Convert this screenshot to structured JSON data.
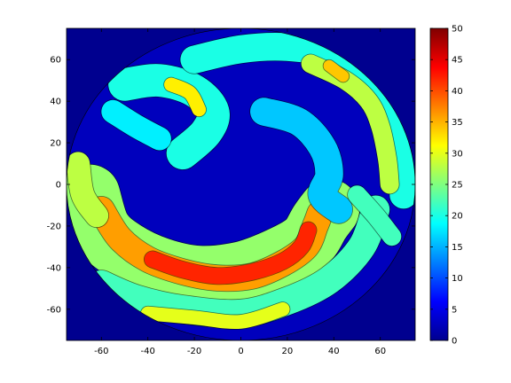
{
  "chart_data": {
    "type": "heatmap",
    "title": "",
    "xlabel": "",
    "ylabel": "",
    "xlim": [
      -75,
      75
    ],
    "ylim": [
      -75,
      75
    ],
    "x_ticks": [
      "-60",
      "-40",
      "-20",
      "0",
      "20",
      "40",
      "60"
    ],
    "x_tick_values": [
      -60,
      -40,
      -20,
      0,
      20,
      40,
      60
    ],
    "y_ticks": [
      "60",
      "40",
      "20",
      "0",
      "-20",
      "-40",
      "-60"
    ],
    "y_tick_values": [
      60,
      40,
      20,
      0,
      -20,
      -40,
      -60
    ],
    "colorbar": {
      "range": [
        0,
        50
      ],
      "ticks": [
        "50",
        "45",
        "40",
        "35",
        "30",
        "25",
        "20",
        "15",
        "10",
        "5",
        "0"
      ],
      "tick_values": [
        50,
        45,
        40,
        35,
        30,
        25,
        20,
        15,
        10,
        5,
        0
      ],
      "colormap": "jet"
    },
    "disk_radius": 75,
    "background_value": 0,
    "features": [
      {
        "shape": "band",
        "points": [
          [
            -65,
            -5
          ],
          [
            -60,
            -22
          ],
          [
            -50,
            -32
          ],
          [
            -35,
            -40
          ],
          [
            -18,
            -44
          ],
          [
            0,
            -42
          ],
          [
            15,
            -36
          ],
          [
            28,
            -28
          ],
          [
            34,
            -18
          ],
          [
            38,
            -12
          ]
        ],
        "value": 26,
        "width": 26
      },
      {
        "shape": "band",
        "points": [
          [
            -60,
            -12
          ],
          [
            -52,
            -26
          ],
          [
            -40,
            -36
          ],
          [
            -25,
            -42
          ],
          [
            -10,
            -45
          ],
          [
            5,
            -44
          ],
          [
            18,
            -38
          ],
          [
            28,
            -30
          ],
          [
            32,
            -20
          ],
          [
            34,
            -14
          ]
        ],
        "value": 36,
        "width": 11
      },
      {
        "shape": "band",
        "points": [
          [
            -38,
            -36
          ],
          [
            -25,
            -41
          ],
          [
            -10,
            -44
          ],
          [
            5,
            -42
          ],
          [
            18,
            -37
          ],
          [
            26,
            -30
          ],
          [
            29,
            -22
          ]
        ],
        "value": 42,
        "width": 7
      },
      {
        "shape": "band",
        "points": [
          [
            -60,
            -48
          ],
          [
            -45,
            -55
          ],
          [
            -25,
            -60
          ],
          [
            0,
            -62
          ],
          [
            20,
            -56
          ],
          [
            38,
            -46
          ],
          [
            52,
            -30
          ],
          [
            58,
            -12
          ]
        ],
        "value": 22,
        "width": 12
      },
      {
        "shape": "band",
        "points": [
          [
            -40,
            -62
          ],
          [
            -20,
            -64
          ],
          [
            0,
            -66
          ],
          [
            18,
            -60
          ]
        ],
        "value": 30,
        "width": 6
      },
      {
        "shape": "band",
        "points": [
          [
            -70,
            10
          ],
          [
            -68,
            -5
          ],
          [
            -62,
            -15
          ]
        ],
        "value": 28,
        "width": 10
      },
      {
        "shape": "band",
        "points": [
          [
            -50,
            48
          ],
          [
            -35,
            50
          ],
          [
            -20,
            45
          ],
          [
            -12,
            35
          ],
          [
            -15,
            25
          ],
          [
            -25,
            15
          ]
        ],
        "value": 20,
        "width": 14
      },
      {
        "shape": "band",
        "points": [
          [
            -30,
            48
          ],
          [
            -22,
            44
          ],
          [
            -18,
            36
          ]
        ],
        "value": 32,
        "width": 6
      },
      {
        "shape": "band",
        "points": [
          [
            -55,
            35
          ],
          [
            -45,
            28
          ],
          [
            -35,
            22
          ]
        ],
        "value": 18,
        "width": 10
      },
      {
        "shape": "band",
        "points": [
          [
            -20,
            60
          ],
          [
            0,
            65
          ],
          [
            20,
            66
          ],
          [
            40,
            62
          ],
          [
            55,
            50
          ],
          [
            65,
            35
          ],
          [
            70,
            15
          ],
          [
            70,
            -5
          ]
        ],
        "value": 20,
        "width": 12
      },
      {
        "shape": "band",
        "points": [
          [
            30,
            58
          ],
          [
            45,
            50
          ],
          [
            55,
            40
          ],
          [
            60,
            28
          ],
          [
            63,
            12
          ],
          [
            64,
            0
          ]
        ],
        "value": 28,
        "width": 8
      },
      {
        "shape": "band",
        "points": [
          [
            38,
            57
          ],
          [
            44,
            52
          ]
        ],
        "value": 34,
        "width": 5
      },
      {
        "shape": "band",
        "points": [
          [
            10,
            35
          ],
          [
            25,
            30
          ],
          [
            35,
            18
          ],
          [
            38,
            5
          ],
          [
            35,
            -5
          ],
          [
            42,
            -12
          ]
        ],
        "value": 16,
        "width": 12
      },
      {
        "shape": "band",
        "points": [
          [
            50,
            -5
          ],
          [
            58,
            -15
          ],
          [
            65,
            -25
          ]
        ],
        "value": 22,
        "width": 8
      }
    ]
  }
}
